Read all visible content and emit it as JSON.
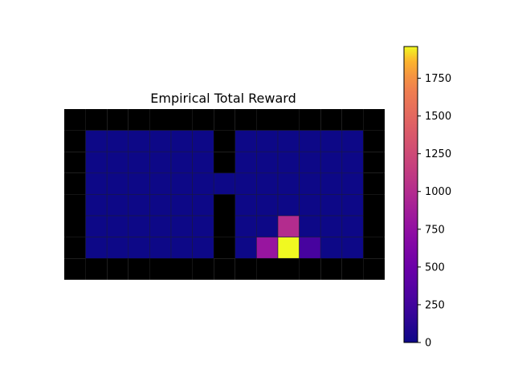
{
  "chart_data": {
    "type": "heatmap",
    "title": "Empirical Total Reward",
    "xlabel": "",
    "ylabel": "",
    "grid": false,
    "colormap": "plasma",
    "wall_color": "#000000",
    "rows": 8,
    "cols": 15,
    "values": [
      [
        null,
        null,
        null,
        null,
        null,
        null,
        null,
        null,
        null,
        null,
        null,
        null,
        null,
        null,
        null
      ],
      [
        null,
        0,
        0,
        0,
        0,
        0,
        0,
        null,
        0,
        0,
        0,
        0,
        0,
        0,
        null
      ],
      [
        null,
        0,
        0,
        0,
        0,
        0,
        0,
        null,
        0,
        0,
        0,
        0,
        0,
        0,
        null
      ],
      [
        null,
        0,
        0,
        0,
        0,
        0,
        0,
        0,
        0,
        0,
        0,
        0,
        0,
        0,
        null
      ],
      [
        null,
        0,
        0,
        0,
        0,
        0,
        0,
        null,
        0,
        0,
        0,
        0,
        0,
        0,
        null
      ],
      [
        null,
        0,
        0,
        0,
        0,
        0,
        0,
        null,
        0,
        0,
        1000,
        0,
        0,
        0,
        null
      ],
      [
        null,
        0,
        0,
        0,
        0,
        0,
        0,
        null,
        0,
        800,
        1960,
        280,
        0,
        0,
        null
      ],
      [
        null,
        null,
        null,
        null,
        null,
        null,
        null,
        null,
        null,
        null,
        null,
        null,
        null,
        null,
        null
      ]
    ],
    "colorbar": {
      "min": 0,
      "max": 1960,
      "ticks": [
        0,
        250,
        500,
        750,
        1000,
        1250,
        1500,
        1750
      ],
      "tick_labels": [
        "0",
        "250",
        "500",
        "750",
        "1000",
        "1250",
        "1500",
        "1750"
      ]
    }
  }
}
